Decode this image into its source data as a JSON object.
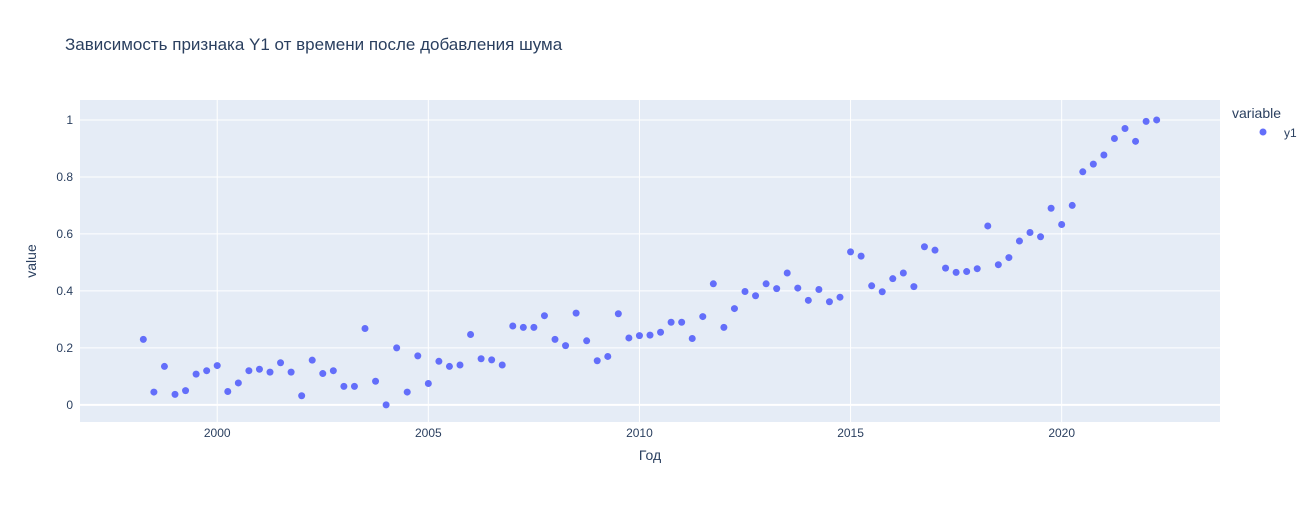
{
  "chart_data": {
    "type": "scatter",
    "title": "Зависимость признака Y1 от времени после добавления шума",
    "xlabel": "Год",
    "ylabel": "value",
    "xlim": [
      1996.75,
      2023.75
    ],
    "ylim": [
      -0.06,
      1.07
    ],
    "x_ticks": [
      2000,
      2005,
      2010,
      2015,
      2020
    ],
    "x_tick_labels": [
      "2000",
      "2005",
      "2010",
      "2015",
      "2020"
    ],
    "y_ticks": [
      0,
      0.2,
      0.4,
      0.6,
      0.8,
      1
    ],
    "y_tick_labels": [
      "0",
      "0.2",
      "0.4",
      "0.6",
      "0.8",
      "1"
    ],
    "grid": true,
    "legend": {
      "title": "variable",
      "position": "top-right"
    },
    "series": [
      {
        "name": "y1",
        "color": "#636efa",
        "x": [
          1998.25,
          1998.5,
          1998.75,
          1999.0,
          1999.25,
          1999.5,
          1999.75,
          2000.0,
          2000.25,
          2000.5,
          2000.75,
          2001.0,
          2001.25,
          2001.5,
          2001.75,
          2002.0,
          2002.25,
          2002.5,
          2002.75,
          2003.0,
          2003.25,
          2003.5,
          2003.75,
          2004.0,
          2004.25,
          2004.5,
          2004.75,
          2005.0,
          2005.25,
          2005.5,
          2005.75,
          2006.0,
          2006.25,
          2006.5,
          2006.75,
          2007.0,
          2007.25,
          2007.5,
          2007.75,
          2008.0,
          2008.25,
          2008.5,
          2008.75,
          2009.0,
          2009.25,
          2009.5,
          2009.75,
          2010.0,
          2010.25,
          2010.5,
          2010.75,
          2011.0,
          2011.25,
          2011.5,
          2011.75,
          2012.0,
          2012.25,
          2012.5,
          2012.75,
          2013.0,
          2013.25,
          2013.5,
          2013.75,
          2014.0,
          2014.25,
          2014.5,
          2014.75,
          2015.0,
          2015.25,
          2015.5,
          2015.75,
          2016.0,
          2016.25,
          2016.5,
          2016.75,
          2017.0,
          2017.25,
          2017.5,
          2017.75,
          2018.0,
          2018.25,
          2018.5,
          2018.75,
          2019.0,
          2019.25,
          2019.5,
          2019.75,
          2020.0,
          2020.25,
          2020.5,
          2020.75,
          2021.0,
          2021.25,
          2021.5,
          2021.75,
          2022.0,
          2022.25
        ],
        "y": [
          0.23,
          0.045,
          0.135,
          0.037,
          0.05,
          0.108,
          0.12,
          0.138,
          0.047,
          0.077,
          0.12,
          0.125,
          0.115,
          0.148,
          0.115,
          0.032,
          0.157,
          0.11,
          0.12,
          0.065,
          0.065,
          0.268,
          0.083,
          0.0,
          0.2,
          0.045,
          0.172,
          0.075,
          0.153,
          0.135,
          0.14,
          0.247,
          0.162,
          0.158,
          0.14,
          0.277,
          0.272,
          0.272,
          0.313,
          0.23,
          0.208,
          0.322,
          0.225,
          0.155,
          0.17,
          0.32,
          0.235,
          0.243,
          0.245,
          0.255,
          0.29,
          0.29,
          0.233,
          0.31,
          0.425,
          0.272,
          0.338,
          0.398,
          0.383,
          0.425,
          0.408,
          0.463,
          0.41,
          0.367,
          0.405,
          0.362,
          0.378,
          0.537,
          0.522,
          0.418,
          0.397,
          0.443,
          0.463,
          0.415,
          0.555,
          0.543,
          0.48,
          0.465,
          0.468,
          0.478,
          0.628,
          0.492,
          0.517,
          0.575,
          0.605,
          0.59,
          0.69,
          0.633,
          0.7,
          0.818,
          0.845,
          0.877,
          0.935,
          0.97,
          0.925,
          0.995,
          1.0
        ]
      }
    ]
  }
}
